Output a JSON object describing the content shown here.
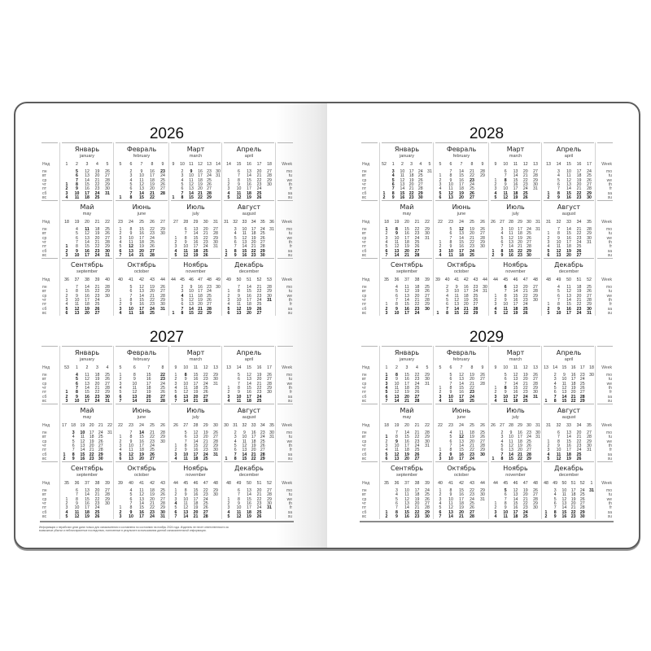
{
  "labels": {
    "week_ru": "Нед",
    "weekdays_ru": [
      "пн",
      "вт",
      "ср",
      "чт",
      "пт",
      "сб",
      "вс"
    ],
    "week_en": "Week",
    "weekdays_en": [
      "mo",
      "tu",
      "we",
      "th",
      "fr",
      "sa",
      "su"
    ]
  },
  "months": [
    {
      "ru": "Январь",
      "en": "january"
    },
    {
      "ru": "Февраль",
      "en": "february"
    },
    {
      "ru": "Март",
      "en": "march"
    },
    {
      "ru": "Апрель",
      "en": "april"
    },
    {
      "ru": "Май",
      "en": "may"
    },
    {
      "ru": "Июнь",
      "en": "june"
    },
    {
      "ru": "Июль",
      "en": "july"
    },
    {
      "ru": "Август",
      "en": "august"
    },
    {
      "ru": "Сентябрь",
      "en": "september"
    },
    {
      "ru": "Октябрь",
      "en": "october"
    },
    {
      "ru": "Ноябрь",
      "en": "november"
    },
    {
      "ru": "Декабрь",
      "en": "december"
    }
  ],
  "pages": [
    {
      "years": [
        {
          "year": "2026",
          "holidays": [
            "01-01",
            "01-02",
            "01-05",
            "01-06",
            "01-07",
            "01-08",
            "01-09",
            "02-23",
            "03-09",
            "05-01",
            "05-11",
            "06-12",
            "11-04",
            "12-31"
          ]
        },
        {
          "year": "2027",
          "holidays": [
            "01-01",
            "01-04",
            "01-05",
            "01-06",
            "01-07",
            "01-08",
            "02-22",
            "02-23",
            "03-08",
            "05-03",
            "05-10",
            "06-14",
            "11-04",
            "12-31"
          ]
        }
      ]
    },
    {
      "years": [
        {
          "year": "2028",
          "holidays": [
            "01-03",
            "01-04",
            "01-05",
            "01-06",
            "01-07",
            "02-23",
            "03-08",
            "05-01",
            "05-08",
            "05-09",
            "06-12",
            "11-06"
          ]
        },
        {
          "year": "2029",
          "holidays": [
            "01-01",
            "01-02",
            "01-03",
            "01-04",
            "01-05",
            "01-08",
            "02-23",
            "03-08",
            "05-01",
            "05-09",
            "06-12",
            "11-05",
            "12-31"
          ]
        }
      ]
    }
  ],
  "footnote": "Информация о нерабочих днях дана только для ознакомления и составлена по состоянию на ноябрь 2024 года. Издатель не несет ответственности за возможные убытки и неблагоприятные последствия, понесенные в результате использования данной ознакомительной информации."
}
